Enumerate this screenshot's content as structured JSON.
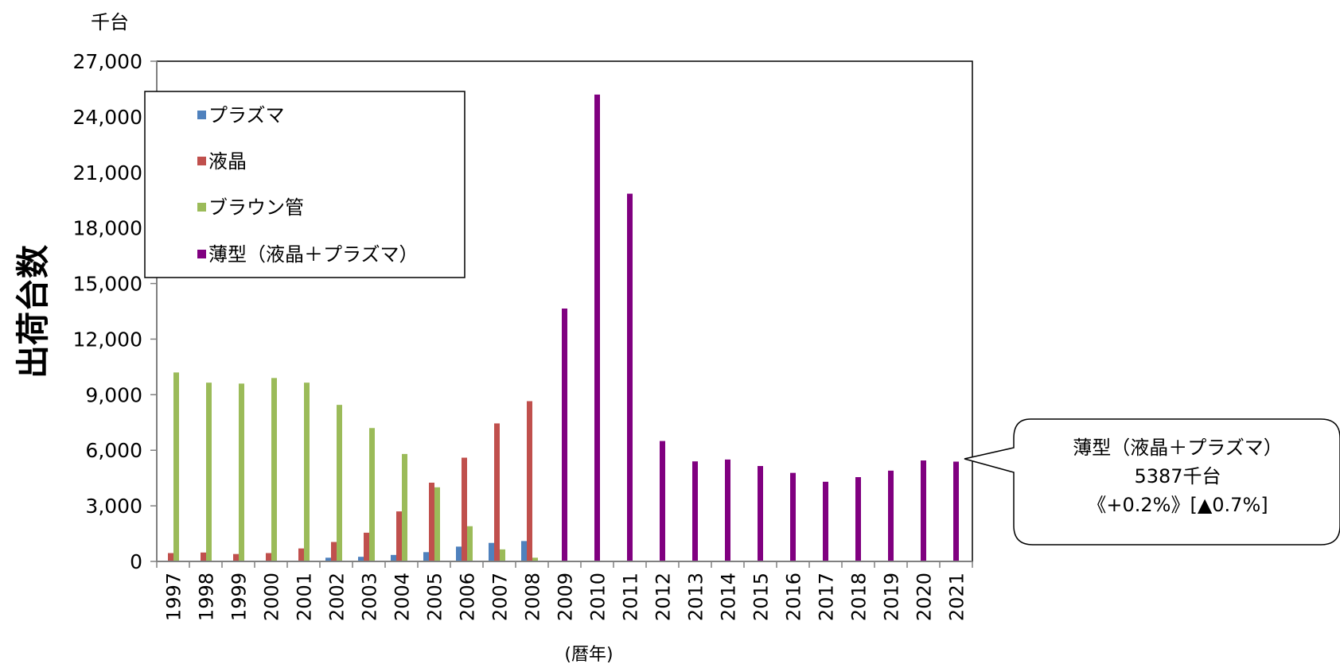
{
  "chart_data": {
    "type": "bar",
    "title": "",
    "xlabel": "(暦年)",
    "ylabel": "出荷台数",
    "unit_label": "千台",
    "ylim": [
      0,
      27000
    ],
    "yticks": [
      "0",
      "3,000",
      "6,000",
      "9,000",
      "12,000",
      "15,000",
      "18,000",
      "21,000",
      "24,000",
      "27,000"
    ],
    "grid": false,
    "legend_position": "top-left",
    "categories": [
      "1997",
      "1998",
      "1999",
      "2000",
      "2001",
      "2002",
      "2003",
      "2004",
      "2005",
      "2006",
      "2007",
      "2008",
      "2009",
      "2010",
      "2011",
      "2012",
      "2013",
      "2014",
      "2015",
      "2016",
      "2017",
      "2018",
      "2019",
      "2020",
      "2021"
    ],
    "series": [
      {
        "name": "プラズマ",
        "color": "#4F81BD",
        "values": [
          0,
          0,
          0,
          0,
          0,
          200,
          250,
          350,
          500,
          800,
          1000,
          1100,
          null,
          null,
          null,
          null,
          null,
          null,
          null,
          null,
          null,
          null,
          null,
          null,
          null
        ]
      },
      {
        "name": "液晶",
        "color": "#C0504D",
        "values": [
          450,
          480,
          400,
          450,
          700,
          1050,
          1550,
          2700,
          4250,
          5600,
          7450,
          8650,
          null,
          null,
          null,
          null,
          null,
          null,
          null,
          null,
          null,
          null,
          null,
          null,
          null
        ]
      },
      {
        "name": "ブラウン管",
        "color": "#9BBB59",
        "values": [
          10200,
          9650,
          9600,
          9900,
          9650,
          8450,
          7200,
          5800,
          4000,
          1900,
          650,
          200,
          null,
          null,
          null,
          null,
          null,
          null,
          null,
          null,
          null,
          null,
          null,
          null,
          null
        ]
      },
      {
        "name": "薄型（液晶＋プラズマ）",
        "color": "#800080",
        "values": [
          null,
          null,
          null,
          null,
          null,
          null,
          null,
          null,
          null,
          null,
          null,
          null,
          13650,
          25200,
          19850,
          6500,
          5400,
          5500,
          5150,
          4780,
          4300,
          4550,
          4900,
          5450,
          5387
        ]
      }
    ],
    "annotations": [
      {
        "lines": [
          "薄型（液晶＋プラズマ）",
          "5387千台",
          "《+0.2%》[▲0.7%]"
        ],
        "target": "2021"
      }
    ]
  }
}
